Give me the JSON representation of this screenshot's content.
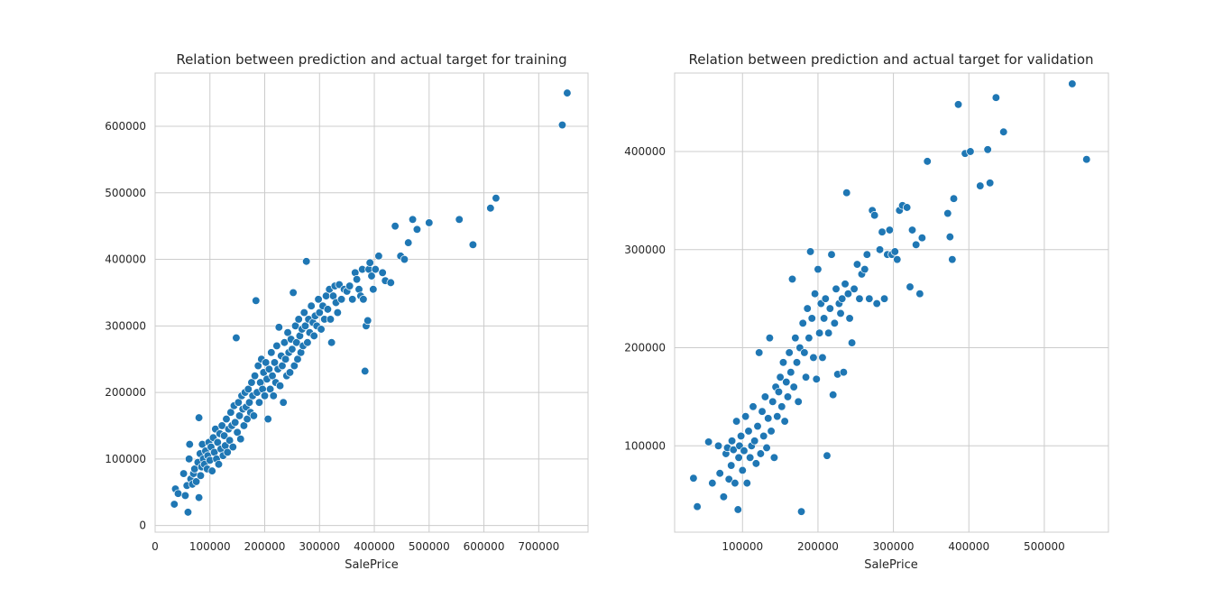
{
  "chart_data": [
    {
      "type": "scatter",
      "title": "Relation between prediction and actual target for training",
      "xlabel": "SalePrice",
      "ylabel": "",
      "xlim": [
        0,
        790000
      ],
      "ylim": [
        -10000,
        680000
      ],
      "xticks": [
        0,
        100000,
        200000,
        300000,
        400000,
        500000,
        600000,
        700000
      ],
      "yticks": [
        0,
        100000,
        200000,
        300000,
        400000,
        500000,
        600000
      ],
      "xtick_labels": [
        "0",
        "100000",
        "200000",
        "300000",
        "400000",
        "500000",
        "600000",
        "700000"
      ],
      "ytick_labels": [
        "0",
        "100000",
        "200000",
        "300000",
        "400000",
        "500000",
        "600000"
      ],
      "grid": true,
      "color": "#1f77b4",
      "points": [
        [
          35000,
          32000
        ],
        [
          37000,
          55000
        ],
        [
          42000,
          48000
        ],
        [
          52000,
          78000
        ],
        [
          55000,
          45000
        ],
        [
          58000,
          60000
        ],
        [
          60000,
          20000
        ],
        [
          62000,
          100000
        ],
        [
          63000,
          122000
        ],
        [
          65000,
          70000
        ],
        [
          68000,
          62000
        ],
        [
          70000,
          78000
        ],
        [
          72000,
          85000
        ],
        [
          75000,
          66000
        ],
        [
          78000,
          95000
        ],
        [
          80000,
          42000
        ],
        [
          80000,
          162000
        ],
        [
          82000,
          108000
        ],
        [
          83000,
          75000
        ],
        [
          85000,
          88000
        ],
        [
          86000,
          122000
        ],
        [
          88000,
          100000
        ],
        [
          90000,
          92000
        ],
        [
          92000,
          112000
        ],
        [
          95000,
          85000
        ],
        [
          96000,
          105000
        ],
        [
          98000,
          125000
        ],
        [
          100000,
          98000
        ],
        [
          102000,
          118000
        ],
        [
          104000,
          82000
        ],
        [
          106000,
          132000
        ],
        [
          108000,
          110000
        ],
        [
          110000,
          145000
        ],
        [
          112000,
          100000
        ],
        [
          114000,
          125000
        ],
        [
          116000,
          92000
        ],
        [
          118000,
          138000
        ],
        [
          120000,
          115000
        ],
        [
          122000,
          150000
        ],
        [
          124000,
          105000
        ],
        [
          126000,
          135000
        ],
        [
          128000,
          120000
        ],
        [
          130000,
          160000
        ],
        [
          132000,
          110000
        ],
        [
          134000,
          145000
        ],
        [
          136000,
          128000
        ],
        [
          138000,
          170000
        ],
        [
          140000,
          150000
        ],
        [
          142000,
          118000
        ],
        [
          144000,
          180000
        ],
        [
          146000,
          155000
        ],
        [
          148000,
          282000
        ],
        [
          150000,
          140000
        ],
        [
          152000,
          185000
        ],
        [
          154000,
          165000
        ],
        [
          156000,
          130000
        ],
        [
          158000,
          195000
        ],
        [
          160000,
          175000
        ],
        [
          162000,
          150000
        ],
        [
          164000,
          200000
        ],
        [
          166000,
          178000
        ],
        [
          168000,
          160000
        ],
        [
          170000,
          205000
        ],
        [
          172000,
          185000
        ],
        [
          174000,
          170000
        ],
        [
          176000,
          215000
        ],
        [
          178000,
          195000
        ],
        [
          180000,
          165000
        ],
        [
          182000,
          225000
        ],
        [
          184000,
          338000
        ],
        [
          186000,
          200000
        ],
        [
          188000,
          240000
        ],
        [
          190000,
          185000
        ],
        [
          192000,
          215000
        ],
        [
          194000,
          250000
        ],
        [
          196000,
          205000
        ],
        [
          198000,
          230000
        ],
        [
          200000,
          195000
        ],
        [
          202000,
          245000
        ],
        [
          204000,
          220000
        ],
        [
          206000,
          160000
        ],
        [
          208000,
          235000
        ],
        [
          210000,
          205000
        ],
        [
          212000,
          260000
        ],
        [
          214000,
          225000
        ],
        [
          216000,
          195000
        ],
        [
          218000,
          245000
        ],
        [
          220000,
          215000
        ],
        [
          222000,
          270000
        ],
        [
          224000,
          235000
        ],
        [
          226000,
          298000
        ],
        [
          228000,
          210000
        ],
        [
          230000,
          255000
        ],
        [
          232000,
          240000
        ],
        [
          234000,
          185000
        ],
        [
          236000,
          275000
        ],
        [
          238000,
          250000
        ],
        [
          240000,
          225000
        ],
        [
          242000,
          290000
        ],
        [
          244000,
          260000
        ],
        [
          246000,
          230000
        ],
        [
          248000,
          280000
        ],
        [
          250000,
          265000
        ],
        [
          252000,
          350000
        ],
        [
          254000,
          240000
        ],
        [
          256000,
          300000
        ],
        [
          258000,
          275000
        ],
        [
          260000,
          250000
        ],
        [
          262000,
          310000
        ],
        [
          264000,
          285000
        ],
        [
          266000,
          260000
        ],
        [
          268000,
          295000
        ],
        [
          270000,
          270000
        ],
        [
          272000,
          320000
        ],
        [
          274000,
          300000
        ],
        [
          276000,
          397000
        ],
        [
          278000,
          275000
        ],
        [
          280000,
          310000
        ],
        [
          282000,
          290000
        ],
        [
          285000,
          330000
        ],
        [
          288000,
          305000
        ],
        [
          290000,
          285000
        ],
        [
          292000,
          315000
        ],
        [
          295000,
          300000
        ],
        [
          298000,
          340000
        ],
        [
          300000,
          320000
        ],
        [
          303000,
          295000
        ],
        [
          306000,
          330000
        ],
        [
          309000,
          310000
        ],
        [
          312000,
          345000
        ],
        [
          315000,
          325000
        ],
        [
          318000,
          355000
        ],
        [
          320000,
          310000
        ],
        [
          322000,
          275000
        ],
        [
          325000,
          345000
        ],
        [
          328000,
          360000
        ],
        [
          330000,
          335000
        ],
        [
          333000,
          320000
        ],
        [
          336000,
          362000
        ],
        [
          340000,
          340000
        ],
        [
          345000,
          355000
        ],
        [
          350000,
          352000
        ],
        [
          355000,
          360000
        ],
        [
          360000,
          340000
        ],
        [
          365000,
          380000
        ],
        [
          368000,
          370000
        ],
        [
          372000,
          355000
        ],
        [
          375000,
          345000
        ],
        [
          378000,
          385000
        ],
        [
          380000,
          340000
        ],
        [
          383000,
          232000
        ],
        [
          385000,
          300000
        ],
        [
          388000,
          308000
        ],
        [
          390000,
          385000
        ],
        [
          392000,
          395000
        ],
        [
          395000,
          375000
        ],
        [
          398000,
          355000
        ],
        [
          402000,
          385000
        ],
        [
          408000,
          405000
        ],
        [
          415000,
          380000
        ],
        [
          420000,
          368000
        ],
        [
          430000,
          365000
        ],
        [
          438000,
          450000
        ],
        [
          448000,
          405000
        ],
        [
          455000,
          400000
        ],
        [
          462000,
          425000
        ],
        [
          470000,
          460000
        ],
        [
          478000,
          445000
        ],
        [
          500000,
          455000
        ],
        [
          555000,
          460000
        ],
        [
          580000,
          422000
        ],
        [
          612000,
          477000
        ],
        [
          622000,
          492000
        ],
        [
          743000,
          602000
        ],
        [
          752000,
          650000
        ]
      ]
    },
    {
      "type": "scatter",
      "title": "Relation between prediction and actual target for validation",
      "xlabel": "SalePrice",
      "ylabel": "",
      "xlim": [
        10000,
        585000
      ],
      "ylim": [
        12000,
        480000
      ],
      "xticks": [
        100000,
        200000,
        300000,
        400000,
        500000
      ],
      "yticks": [
        100000,
        200000,
        300000,
        400000
      ],
      "xtick_labels": [
        "100000",
        "200000",
        "300000",
        "400000",
        "500000"
      ],
      "ytick_labels": [
        "100000",
        "200000",
        "300000",
        "400000"
      ],
      "grid": true,
      "color": "#1f77b4",
      "points": [
        [
          35000,
          67000
        ],
        [
          40000,
          38000
        ],
        [
          55000,
          104000
        ],
        [
          60000,
          62000
        ],
        [
          68000,
          100000
        ],
        [
          70000,
          72000
        ],
        [
          75000,
          48000
        ],
        [
          78000,
          92000
        ],
        [
          80000,
          98000
        ],
        [
          82000,
          66000
        ],
        [
          85000,
          80000
        ],
        [
          86000,
          105000
        ],
        [
          88000,
          96000
        ],
        [
          90000,
          62000
        ],
        [
          92000,
          125000
        ],
        [
          94000,
          35000
        ],
        [
          95000,
          88000
        ],
        [
          96000,
          100000
        ],
        [
          98000,
          110000
        ],
        [
          100000,
          75000
        ],
        [
          102000,
          95000
        ],
        [
          104000,
          130000
        ],
        [
          106000,
          62000
        ],
        [
          108000,
          115000
        ],
        [
          110000,
          88000
        ],
        [
          112000,
          100000
        ],
        [
          114000,
          140000
        ],
        [
          116000,
          105000
        ],
        [
          118000,
          82000
        ],
        [
          120000,
          120000
        ],
        [
          122000,
          195000
        ],
        [
          124000,
          92000
        ],
        [
          126000,
          135000
        ],
        [
          128000,
          110000
        ],
        [
          130000,
          150000
        ],
        [
          132000,
          98000
        ],
        [
          134000,
          128000
        ],
        [
          136000,
          210000
        ],
        [
          138000,
          115000
        ],
        [
          140000,
          145000
        ],
        [
          142000,
          88000
        ],
        [
          144000,
          160000
        ],
        [
          146000,
          130000
        ],
        [
          148000,
          155000
        ],
        [
          150000,
          170000
        ],
        [
          152000,
          140000
        ],
        [
          154000,
          185000
        ],
        [
          156000,
          125000
        ],
        [
          158000,
          165000
        ],
        [
          160000,
          150000
        ],
        [
          162000,
          195000
        ],
        [
          164000,
          175000
        ],
        [
          166000,
          270000
        ],
        [
          168000,
          160000
        ],
        [
          170000,
          210000
        ],
        [
          172000,
          185000
        ],
        [
          174000,
          145000
        ],
        [
          176000,
          200000
        ],
        [
          178000,
          33000
        ],
        [
          180000,
          225000
        ],
        [
          182000,
          195000
        ],
        [
          184000,
          170000
        ],
        [
          186000,
          240000
        ],
        [
          188000,
          210000
        ],
        [
          190000,
          298000
        ],
        [
          192000,
          230000
        ],
        [
          194000,
          190000
        ],
        [
          196000,
          255000
        ],
        [
          198000,
          168000
        ],
        [
          200000,
          280000
        ],
        [
          202000,
          215000
        ],
        [
          204000,
          245000
        ],
        [
          206000,
          190000
        ],
        [
          208000,
          230000
        ],
        [
          210000,
          250000
        ],
        [
          212000,
          90000
        ],
        [
          214000,
          215000
        ],
        [
          216000,
          240000
        ],
        [
          218000,
          295000
        ],
        [
          220000,
          152000
        ],
        [
          222000,
          225000
        ],
        [
          224000,
          260000
        ],
        [
          226000,
          173000
        ],
        [
          228000,
          245000
        ],
        [
          230000,
          235000
        ],
        [
          232000,
          250000
        ],
        [
          234000,
          175000
        ],
        [
          236000,
          265000
        ],
        [
          238000,
          358000
        ],
        [
          240000,
          255000
        ],
        [
          242000,
          230000
        ],
        [
          245000,
          205000
        ],
        [
          248000,
          260000
        ],
        [
          252000,
          285000
        ],
        [
          255000,
          250000
        ],
        [
          258000,
          275000
        ],
        [
          262000,
          280000
        ],
        [
          265000,
          295000
        ],
        [
          268000,
          250000
        ],
        [
          272000,
          340000
        ],
        [
          275000,
          335000
        ],
        [
          278000,
          245000
        ],
        [
          282000,
          300000
        ],
        [
          285000,
          318000
        ],
        [
          288000,
          250000
        ],
        [
          292000,
          295000
        ],
        [
          295000,
          320000
        ],
        [
          298000,
          295000
        ],
        [
          302000,
          298000
        ],
        [
          305000,
          290000
        ],
        [
          308000,
          340000
        ],
        [
          312000,
          345000
        ],
        [
          318000,
          343000
        ],
        [
          322000,
          262000
        ],
        [
          325000,
          320000
        ],
        [
          330000,
          305000
        ],
        [
          335000,
          255000
        ],
        [
          338000,
          312000
        ],
        [
          345000,
          390000
        ],
        [
          372000,
          337000
        ],
        [
          375000,
          313000
        ],
        [
          378000,
          290000
        ],
        [
          380000,
          352000
        ],
        [
          386000,
          448000
        ],
        [
          395000,
          398000
        ],
        [
          402000,
          400000
        ],
        [
          415000,
          365000
        ],
        [
          425000,
          402000
        ],
        [
          428000,
          368000
        ],
        [
          436000,
          455000
        ],
        [
          446000,
          420000
        ],
        [
          537000,
          469000
        ],
        [
          556000,
          392000
        ]
      ]
    }
  ]
}
